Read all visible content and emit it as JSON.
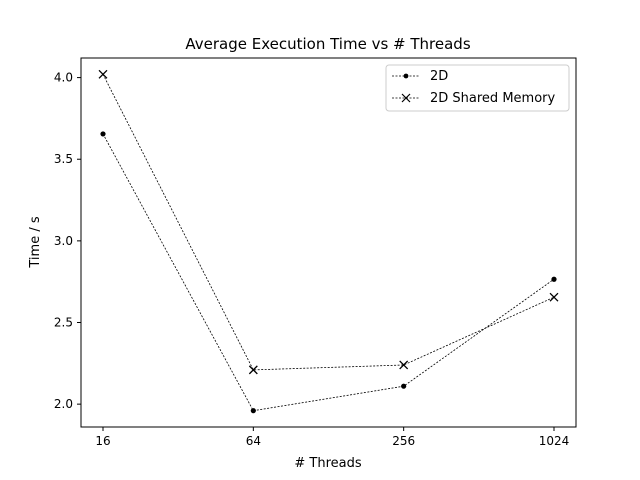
{
  "chart_data": {
    "type": "line",
    "title": "Average Execution Time vs # Threads",
    "xlabel": "# Threads",
    "ylabel": "Time / s",
    "x": [
      16,
      64,
      256,
      1024
    ],
    "x_ticks": [
      "16",
      "64",
      "256",
      "1024"
    ],
    "x_scale": "log2",
    "y_ticks": [
      "2.0",
      "2.5",
      "3.0",
      "3.5",
      "4.0"
    ],
    "y_tick_values": [
      2.0,
      2.5,
      3.0,
      3.5,
      4.0
    ],
    "ylim": [
      1.86,
      4.12
    ],
    "grid": false,
    "legend_position": "top-right",
    "line_color": "#000000",
    "series": [
      {
        "name": "2D",
        "marker": "dot",
        "values": [
          3.655,
          1.96,
          2.11,
          2.765
        ]
      },
      {
        "name": "2D Shared Memory",
        "marker": "x",
        "values": [
          4.02,
          2.21,
          2.24,
          2.655
        ]
      }
    ]
  }
}
